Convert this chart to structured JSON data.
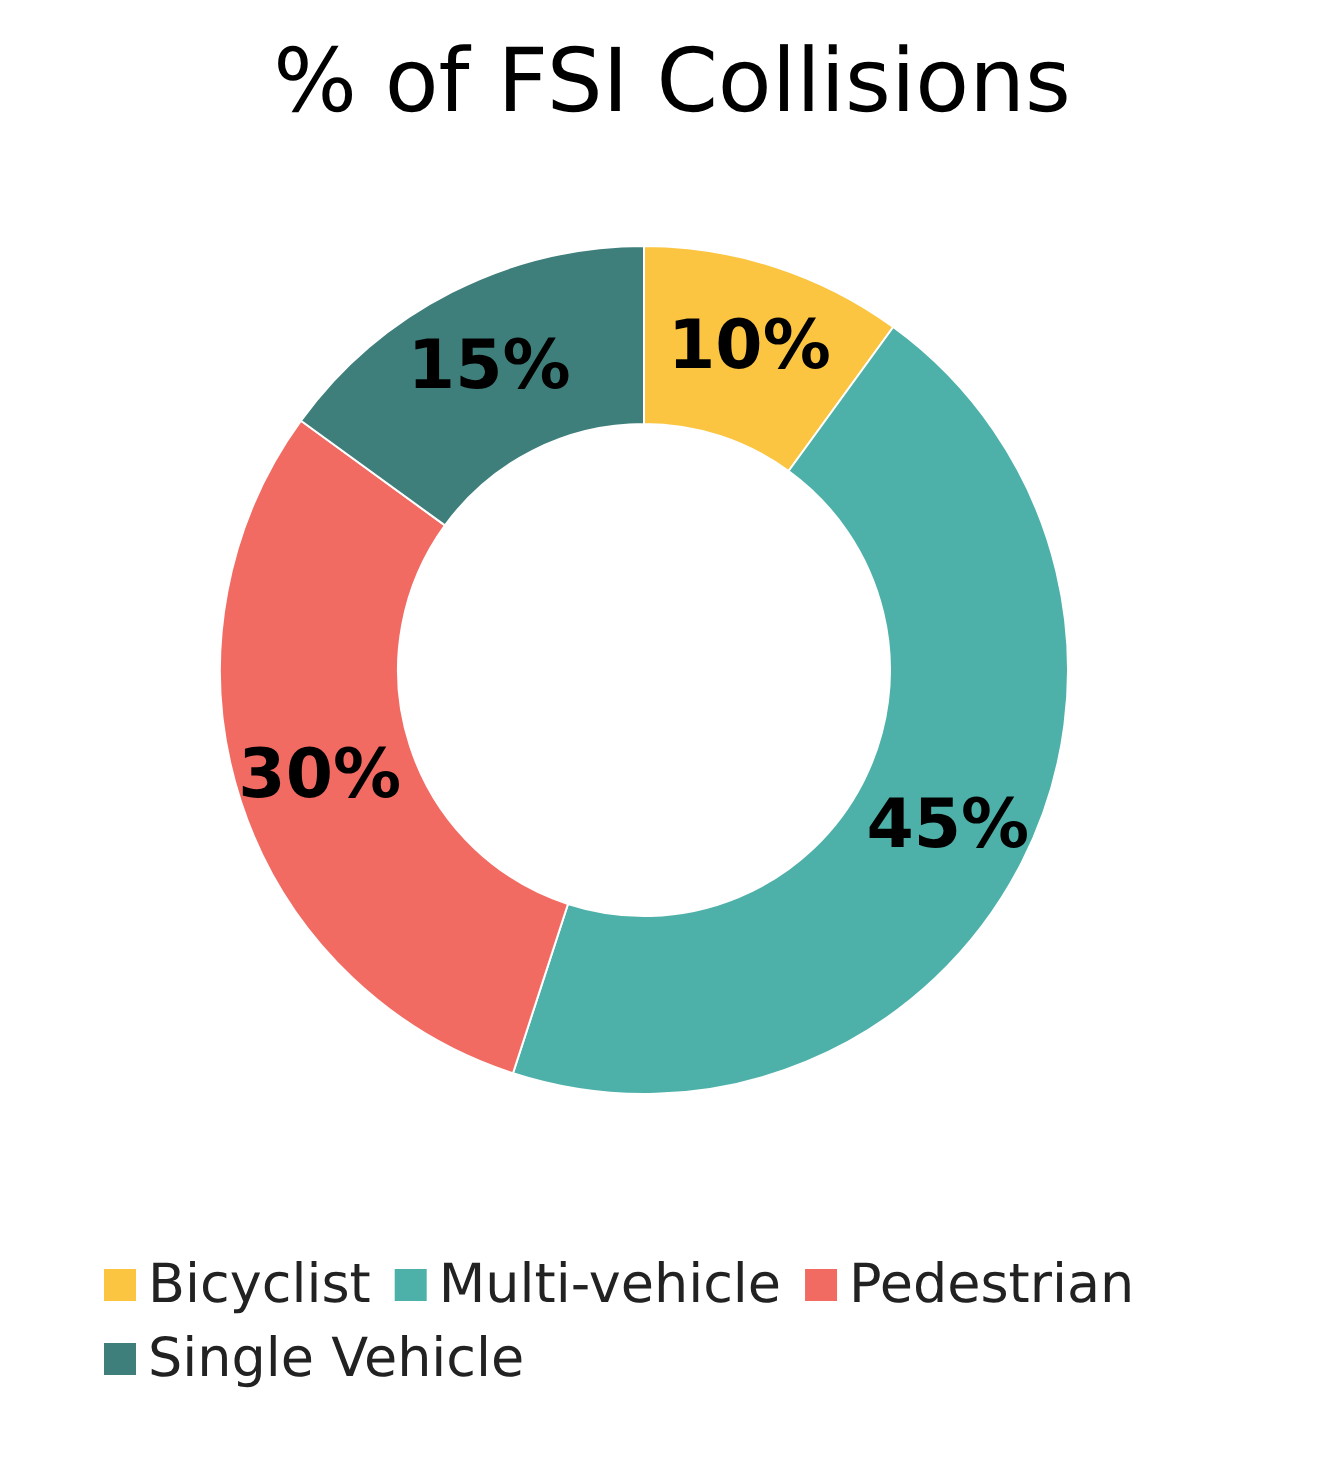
{
  "chart_data": {
    "type": "donut",
    "title": "% of FSI Collisions",
    "categories": [
      "Bicyclist",
      "Multi-vehicle",
      "Pedestrian",
      "Single Vehicle"
    ],
    "values": [
      10,
      45,
      30,
      15
    ],
    "colors": [
      "#fbc541",
      "#4eb1a9",
      "#f26b63",
      "#3e7f7c"
    ],
    "value_labels": [
      "10%",
      "45%",
      "30%",
      "15%"
    ],
    "legend": "bottom"
  }
}
